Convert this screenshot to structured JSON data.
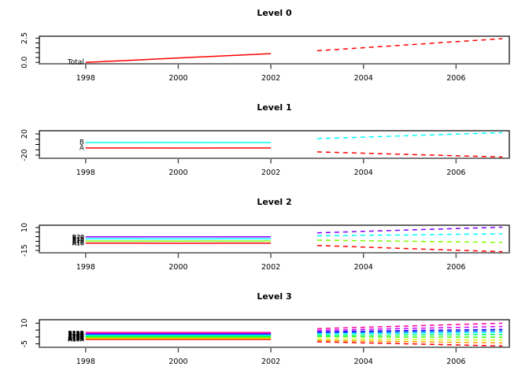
{
  "figure": {
    "background": "#ffffff",
    "axis_line_color": "#7b7b7b",
    "tick_color": "#555555",
    "box_color": "#000000"
  },
  "chart_data": [
    {
      "type": "line",
      "title": "Level 0",
      "xlim": [
        1997.0,
        2007.15
      ],
      "ylim": [
        -0.15,
        2.7
      ],
      "x_ticks": [
        1998,
        2000,
        2002,
        2004,
        2006
      ],
      "y_ticks": [
        0,
        0.5,
        1.0,
        1.5,
        2.0,
        2.5
      ],
      "y_labels": [
        {
          "value": 0,
          "text": "0.0"
        },
        {
          "value": 2.5,
          "text": "2.5"
        }
      ],
      "label_size": 9,
      "label_weight": "normal",
      "legend": "none",
      "grid": false,
      "history_style": "solid",
      "forecast_style": "dashed",
      "series": [
        {
          "name": "Total",
          "color": "#ff0000",
          "history": {
            "x": [
              1998,
              1999,
              2000,
              2001,
              2002
            ],
            "y": [
              0.0,
              0.22,
              0.45,
              0.67,
              0.9
            ]
          },
          "forecast": {
            "x": [
              2003,
              2004,
              2005,
              2006,
              2007
            ],
            "y": [
              1.2,
              1.51,
              1.82,
              2.14,
              2.45
            ]
          }
        }
      ]
    },
    {
      "type": "line",
      "title": "Level 1",
      "xlim": [
        1997.0,
        2007.15
      ],
      "ylim": [
        -26,
        26
      ],
      "x_ticks": [
        1998,
        2000,
        2002,
        2004,
        2006
      ],
      "y_ticks": [
        -20,
        -10,
        0,
        10,
        20
      ],
      "y_labels": [
        {
          "value": -20,
          "text": "-20"
        },
        {
          "value": 20,
          "text": "20"
        }
      ],
      "label_size": 8.5,
      "label_weight": "normal",
      "legend": "none",
      "grid": false,
      "history_style": "solid",
      "forecast_style": "dashed",
      "series": [
        {
          "name": "A",
          "color": "#ff0000",
          "history": {
            "x": [
              1998,
              1999,
              2000,
              2001,
              2002
            ],
            "y": [
              -6.6,
              -6.6,
              -6.7,
              -6.6,
              -6.6
            ]
          },
          "forecast": {
            "x": [
              2003,
              2004,
              2005,
              2006,
              2007
            ],
            "y": [
              -14.0,
              -16.4,
              -18.8,
              -21.2,
              -23.5
            ]
          }
        },
        {
          "name": "B",
          "color": "#00ffff",
          "history": {
            "x": [
              1998,
              1999,
              2000,
              2001,
              2002
            ],
            "y": [
              3.7,
              3.7,
              3.8,
              3.7,
              3.7
            ]
          },
          "forecast": {
            "x": [
              2003,
              2004,
              2005,
              2006,
              2007
            ],
            "y": [
              11.0,
              13.9,
              16.8,
              19.6,
              22.5
            ]
          }
        }
      ]
    },
    {
      "type": "line",
      "title": "Level 2",
      "xlim": [
        1997.0,
        2007.15
      ],
      "ylim": [
        -17.5,
        12.5
      ],
      "x_ticks": [
        1998,
        2000,
        2002,
        2004,
        2006
      ],
      "y_ticks": [
        -15,
        -10,
        -5,
        0,
        5,
        10
      ],
      "y_labels": [
        {
          "value": -15,
          "text": "-15"
        },
        {
          "value": 10,
          "text": "10"
        }
      ],
      "label_size": 7,
      "label_weight": "bold",
      "legend": "none",
      "grid": false,
      "history_style": "solid",
      "forecast_style": "dashed",
      "series": [
        {
          "name": "A10",
          "color": "#ff0000",
          "history": {
            "x": [
              1998,
              1999,
              2000,
              2001,
              2002
            ],
            "y": [
              -7.0,
              -7.0,
              -7.1,
              -7.0,
              -7.0
            ]
          },
          "forecast": {
            "x": [
              2003,
              2004,
              2005,
              2006,
              2007
            ],
            "y": [
              -9.5,
              -11.2,
              -13.0,
              -14.7,
              -16.3
            ]
          }
        },
        {
          "name": "A20",
          "color": "#80ff00",
          "history": {
            "x": [
              1998,
              1999,
              2000,
              2001,
              2002
            ],
            "y": [
              -4.6,
              -4.6,
              -4.7,
              -4.6,
              -4.6
            ]
          },
          "forecast": {
            "x": [
              2003,
              2004,
              2005,
              2006,
              2007
            ],
            "y": [
              -3.8,
              -4.4,
              -5.0,
              -5.6,
              -6.2
            ]
          }
        },
        {
          "name": "B10",
          "color": "#00ffff",
          "history": {
            "x": [
              1998,
              1999,
              2000,
              2001,
              2002
            ],
            "y": [
              -2.3,
              -2.3,
              -2.4,
              -2.3,
              -2.3
            ]
          },
          "forecast": {
            "x": [
              2003,
              2004,
              2005,
              2006,
              2007
            ],
            "y": [
              0.9,
              1.5,
              2.0,
              2.6,
              3.1
            ]
          }
        },
        {
          "name": "B20",
          "color": "#8000ff",
          "history": {
            "x": [
              1998,
              1999,
              2000,
              2001,
              2002
            ],
            "y": [
              -0.1,
              -0.1,
              -0.2,
              -0.1,
              -0.1
            ]
          },
          "forecast": {
            "x": [
              2003,
              2004,
              2005,
              2006,
              2007
            ],
            "y": [
              4.2,
              5.8,
              7.4,
              8.9,
              10.4
            ]
          }
        }
      ]
    },
    {
      "type": "line",
      "title": "Level 3",
      "xlim": [
        1997.0,
        2007.15
      ],
      "ylim": [
        -7.5,
        12.5
      ],
      "x_ticks": [
        1998,
        2000,
        2002,
        2004,
        2006
      ],
      "y_ticks": [
        -5,
        0,
        5,
        10
      ],
      "y_labels": [
        {
          "value": -5,
          "text": "-5"
        },
        {
          "value": 10,
          "text": "10"
        }
      ],
      "label_size": 7,
      "label_weight": "bold",
      "legend": "none",
      "grid": false,
      "history_style": "solid",
      "forecast_style": "dashed",
      "series": [
        {
          "name": "A10A",
          "color": "#ff0000",
          "history": {
            "x": [
              1998,
              1999,
              2000,
              2001,
              2002
            ],
            "y": [
              -1.8,
              -1.8,
              -1.8,
              -1.8,
              -1.8
            ]
          },
          "forecast": {
            "x": [
              2003,
              2004,
              2005,
              2006,
              2007
            ],
            "y": [
              -3.5,
              -4.3,
              -5.0,
              -5.8,
              -6.5
            ]
          }
        },
        {
          "name": "A10B",
          "color": "#ff9900",
          "history": {
            "x": [
              1998,
              1999,
              2000,
              2001,
              2002
            ],
            "y": [
              -1.2,
              -1.2,
              -1.2,
              -1.2,
              -1.2
            ]
          },
          "forecast": {
            "x": [
              2003,
              2004,
              2005,
              2006,
              2007
            ],
            "y": [
              -2.5,
              -3.0,
              -3.4,
              -3.9,
              -4.3
            ]
          }
        },
        {
          "name": "A10C",
          "color": "#ccff00",
          "history": {
            "x": [
              1998,
              1999,
              2000,
              2001,
              2002
            ],
            "y": [
              -0.6,
              -0.6,
              -0.6,
              -0.6,
              -0.6
            ]
          },
          "forecast": {
            "x": [
              2003,
              2004,
              2005,
              2006,
              2007
            ],
            "y": [
              -1.5,
              -1.7,
              -1.9,
              -2.1,
              -2.3
            ]
          }
        },
        {
          "name": "A20A",
          "color": "#33ff00",
          "history": {
            "x": [
              1998,
              1999,
              2000,
              2001,
              2002
            ],
            "y": [
              0.0,
              0.0,
              0.0,
              0.0,
              0.0
            ]
          },
          "forecast": {
            "x": [
              2003,
              2004,
              2005,
              2006,
              2007
            ],
            "y": [
              0.2,
              0.1,
              0.0,
              -0.1,
              -0.2
            ]
          }
        },
        {
          "name": "A20B",
          "color": "#00ff66",
          "history": {
            "x": [
              1998,
              1999,
              2000,
              2001,
              2002
            ],
            "y": [
              0.7,
              0.7,
              0.7,
              0.7,
              0.7
            ]
          },
          "forecast": {
            "x": [
              2003,
              2004,
              2005,
              2006,
              2007
            ],
            "y": [
              1.2,
              1.3,
              1.5,
              1.6,
              1.8
            ]
          }
        },
        {
          "name": "B10A",
          "color": "#00ffff",
          "history": {
            "x": [
              1998,
              1999,
              2000,
              2001,
              2002
            ],
            "y": [
              1.3,
              1.3,
              1.3,
              1.3,
              1.3
            ]
          },
          "forecast": {
            "x": [
              2003,
              2004,
              2005,
              2006,
              2007
            ],
            "y": [
              2.2,
              2.5,
              2.8,
              3.0,
              3.2
            ]
          }
        },
        {
          "name": "B10B",
          "color": "#0066ff",
          "history": {
            "x": [
              1998,
              1999,
              2000,
              2001,
              2002
            ],
            "y": [
              1.9,
              1.9,
              1.9,
              1.9,
              1.9
            ]
          },
          "forecast": {
            "x": [
              2003,
              2004,
              2005,
              2006,
              2007
            ],
            "y": [
              3.0,
              3.4,
              3.7,
              4.1,
              4.4
            ]
          }
        },
        {
          "name": "B10C",
          "color": "#3300ff",
          "history": {
            "x": [
              1998,
              1999,
              2000,
              2001,
              2002
            ],
            "y": [
              2.4,
              2.4,
              2.4,
              2.4,
              2.4
            ]
          },
          "forecast": {
            "x": [
              2003,
              2004,
              2005,
              2006,
              2007
            ],
            "y": [
              3.8,
              4.2,
              4.7,
              5.1,
              5.5
            ]
          }
        },
        {
          "name": "B20A",
          "color": "#cc00ff",
          "history": {
            "x": [
              1998,
              1999,
              2000,
              2001,
              2002
            ],
            "y": [
              2.8,
              2.8,
              2.8,
              2.8,
              2.8
            ]
          },
          "forecast": {
            "x": [
              2003,
              2004,
              2005,
              2006,
              2007
            ],
            "y": [
              4.8,
              5.5,
              6.2,
              6.9,
              7.6
            ]
          }
        },
        {
          "name": "B20B",
          "color": "#ff0099",
          "history": {
            "x": [
              1998,
              1999,
              2000,
              2001,
              2002
            ],
            "y": [
              3.2,
              3.2,
              3.2,
              3.2,
              3.2
            ]
          },
          "forecast": {
            "x": [
              2003,
              2004,
              2005,
              2006,
              2007
            ],
            "y": [
              6.0,
              7.0,
              8.0,
              9.0,
              10.0
            ]
          }
        }
      ]
    }
  ]
}
